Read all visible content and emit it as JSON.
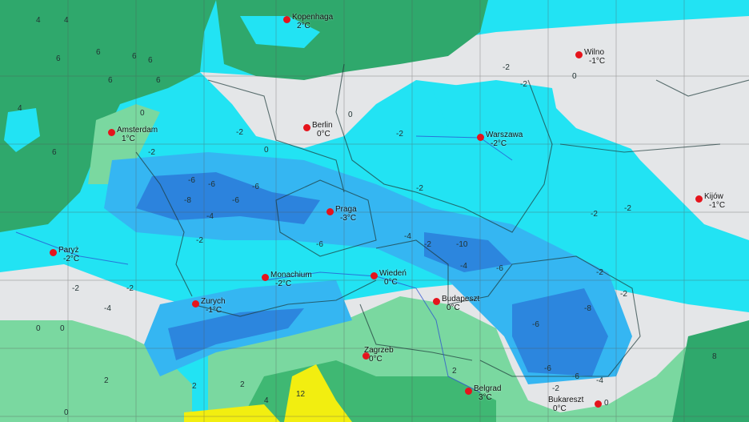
{
  "map": {
    "colors": {
      "sea_warm": "#2fa86c",
      "land_mild": "#7ad8a0",
      "near_zero": "#e4e6e8",
      "cold": "#22e3f3",
      "colder": "#35b6f2",
      "coldest": "#2a72d6",
      "warm": "#f2ee10",
      "city_dot": "#e5141c"
    },
    "cities": [
      {
        "name": "Kopenhaga",
        "temp": "2°C"
      },
      {
        "name": "Amsterdam",
        "temp": "1°C"
      },
      {
        "name": "Berlin",
        "temp": "0°C"
      },
      {
        "name": "Warszawa",
        "temp": "-2°C"
      },
      {
        "name": "Wilno",
        "temp": "-1°C"
      },
      {
        "name": "Kijów",
        "temp": "-1°C"
      },
      {
        "name": "Praga",
        "temp": "-3°C"
      },
      {
        "name": "Paryż",
        "temp": "-2°C"
      },
      {
        "name": "Monachium",
        "temp": "-2°C"
      },
      {
        "name": "Wiedeń",
        "temp": "0°C"
      },
      {
        "name": "Zurych",
        "temp": "-1°C"
      },
      {
        "name": "Budapeszt",
        "temp": "0°C"
      },
      {
        "name": "Zagrzeb",
        "temp": "0°C"
      },
      {
        "name": "Belgrad",
        "temp": "3°C"
      },
      {
        "name": "Bukareszt",
        "temp": "0°C"
      }
    ],
    "isolines": [
      "4",
      "4",
      "6",
      "6",
      "6",
      "6",
      "6",
      "4",
      "6",
      "6",
      "0",
      "0",
      "-2",
      "-2",
      "-6",
      "-6",
      "-6",
      "-8",
      "-6",
      "-4",
      "-2",
      "-2",
      "-2",
      "-2",
      "-2",
      "-2",
      "0",
      "0",
      "-4",
      "-2",
      "-2",
      "-6",
      "-2",
      "-4",
      "-10",
      "-4",
      "-2",
      "-6",
      "-2",
      "-2",
      "-8",
      "-6",
      "-6",
      "-6",
      "-4",
      "-2",
      "0",
      "0",
      "2",
      "2",
      "2",
      "12",
      "8",
      "0",
      "4",
      "2",
      "0"
    ]
  }
}
